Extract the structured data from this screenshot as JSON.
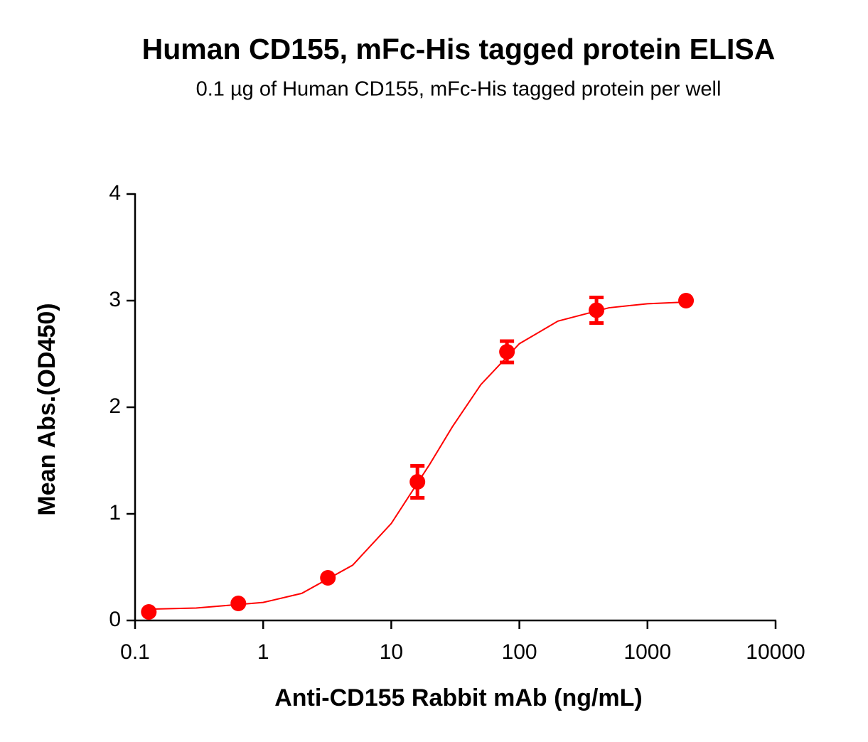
{
  "chart_data": {
    "type": "scatter",
    "title": "Human CD155, mFc-His tagged protein ELISA",
    "subtitle": "0.1 µg of Human CD155, mFc-His tagged protein per well",
    "x_label": "Anti-CD155 Rabbit mAb (ng/mL)",
    "y_label": "Mean Abs.(OD450)",
    "x_scale": "log",
    "xlim": [
      0.1,
      10000
    ],
    "xticks": [
      0.1,
      1,
      10,
      100,
      1000,
      10000
    ],
    "ylim": [
      0,
      4
    ],
    "yticks": [
      0,
      1,
      2,
      3,
      4
    ],
    "series": [
      {
        "color": "#ff0000",
        "x": [
          0.128,
          0.64,
          3.2,
          16,
          80,
          400,
          2000
        ],
        "values": [
          0.08,
          0.16,
          0.4,
          1.3,
          2.52,
          2.91,
          3.0
        ],
        "errors": [
          0,
          0,
          0,
          0.15,
          0.1,
          0.12,
          0
        ]
      }
    ],
    "fit": {
      "color": "#ff0000",
      "x": [
        0.128,
        0.3,
        1,
        2,
        5,
        10,
        20,
        30,
        50,
        100,
        200,
        500,
        1000,
        2000
      ],
      "values": [
        0.106,
        0.117,
        0.169,
        0.254,
        0.519,
        0.91,
        1.467,
        1.817,
        2.212,
        2.596,
        2.808,
        2.933,
        2.971,
        2.987
      ]
    }
  }
}
